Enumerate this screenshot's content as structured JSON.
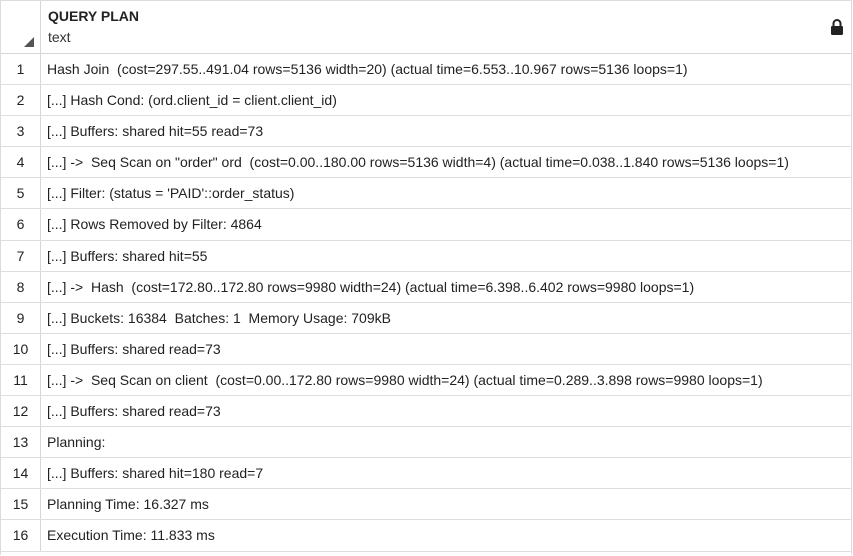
{
  "grid": {
    "column": {
      "name": "QUERY PLAN",
      "type": "text",
      "locked_icon": "lock-icon"
    },
    "rows": [
      {
        "num": "1",
        "text": "Hash Join  (cost=297.55..491.04 rows=5136 width=20) (actual time=6.553..10.967 rows=5136 loops=1)"
      },
      {
        "num": "2",
        "text": "[...] Hash Cond: (ord.client_id = client.client_id)"
      },
      {
        "num": "3",
        "text": "[...] Buffers: shared hit=55 read=73"
      },
      {
        "num": "4",
        "text": "[...] ->  Seq Scan on \"order\" ord  (cost=0.00..180.00 rows=5136 width=4) (actual time=0.038..1.840 rows=5136 loops=1)"
      },
      {
        "num": "5",
        "text": "[...] Filter: (status = 'PAID'::order_status)"
      },
      {
        "num": "6",
        "text": "[...] Rows Removed by Filter: 4864"
      },
      {
        "num": "7",
        "text": "[...] Buffers: shared hit=55"
      },
      {
        "num": "8",
        "text": "[...] ->  Hash  (cost=172.80..172.80 rows=9980 width=24) (actual time=6.398..6.402 rows=9980 loops=1)"
      },
      {
        "num": "9",
        "text": "[...] Buckets: 16384  Batches: 1  Memory Usage: 709kB"
      },
      {
        "num": "10",
        "text": "[...] Buffers: shared read=73"
      },
      {
        "num": "11",
        "text": "[...] ->  Seq Scan on client  (cost=0.00..172.80 rows=9980 width=24) (actual time=0.289..3.898 rows=9980 loops=1)"
      },
      {
        "num": "12",
        "text": "[...] Buffers: shared read=73"
      },
      {
        "num": "13",
        "text": "Planning:"
      },
      {
        "num": "14",
        "text": "[...] Buffers: shared hit=180 read=7"
      },
      {
        "num": "15",
        "text": "Planning Time: 16.327 ms"
      },
      {
        "num": "16",
        "text": "Execution Time: 11.833 ms"
      }
    ]
  }
}
